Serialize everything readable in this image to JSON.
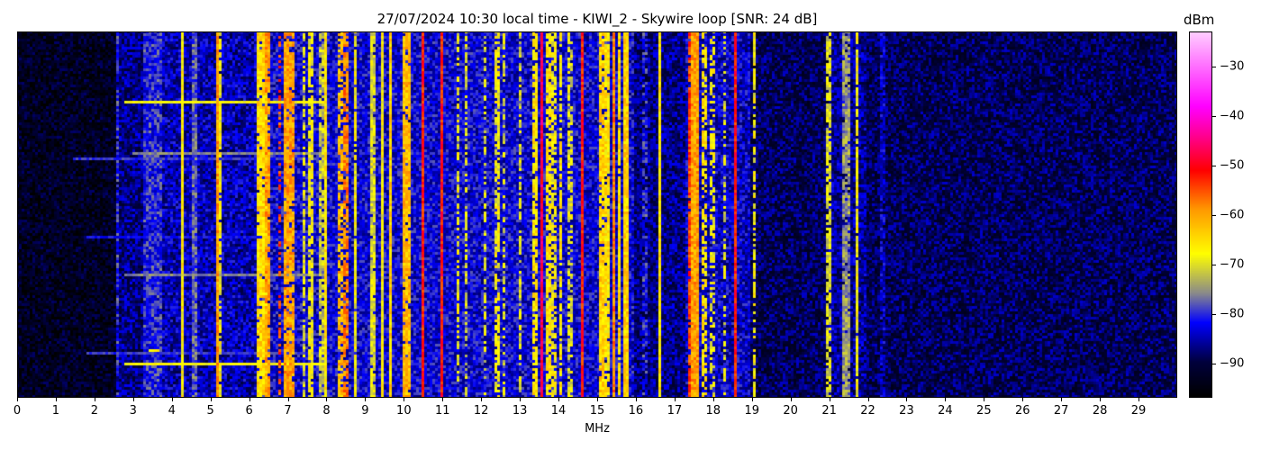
{
  "chart_data": {
    "type": "heatmap",
    "title": "27/07/2024 10:30 local time - KIWI_2 - Skywire loop [SNR: 24 dB]",
    "xlabel": "MHz",
    "ylabel": "",
    "xlim": [
      0,
      30
    ],
    "x_ticks": [
      "0",
      "1",
      "2",
      "3",
      "4",
      "5",
      "6",
      "7",
      "8",
      "9",
      "10",
      "11",
      "12",
      "13",
      "14",
      "15",
      "16",
      "17",
      "18",
      "19",
      "20",
      "21",
      "22",
      "23",
      "24",
      "25",
      "26",
      "27",
      "28",
      "29"
    ],
    "colorbar": {
      "label": "dBm",
      "range": [
        -97,
        -23
      ],
      "ticks": [
        "−30",
        "−40",
        "−50",
        "−60",
        "−70",
        "−80",
        "−90"
      ],
      "tick_values": [
        -30,
        -40,
        -50,
        -60,
        -70,
        -80,
        -90
      ],
      "colormap": [
        {
          "dBm": -97,
          "color": "#000000"
        },
        {
          "dBm": -90,
          "color": "#00003c"
        },
        {
          "dBm": -82,
          "color": "#0000ff"
        },
        {
          "dBm": -76,
          "color": "#8a8a8a"
        },
        {
          "dBm": -68,
          "color": "#ffff00"
        },
        {
          "dBm": -59,
          "color": "#ff9900"
        },
        {
          "dBm": -51,
          "color": "#ff0000"
        },
        {
          "dBm": -44,
          "color": "#ff0090"
        },
        {
          "dBm": -38,
          "color": "#ff00ff"
        },
        {
          "dBm": -23,
          "color": "#ffccff"
        }
      ]
    },
    "grid": false,
    "noise_floor_dBm": [
      {
        "from": 0,
        "to": 2.6,
        "level": -93
      },
      {
        "from": 2.6,
        "to": 3.3,
        "level": -87
      },
      {
        "from": 3.3,
        "to": 3.8,
        "level": -81
      },
      {
        "from": 3.8,
        "to": 6.2,
        "level": -85
      },
      {
        "from": 6.2,
        "to": 16.0,
        "level": -83
      },
      {
        "from": 16.0,
        "to": 17.3,
        "level": -87
      },
      {
        "from": 17.3,
        "to": 19.0,
        "level": -84
      },
      {
        "from": 19.0,
        "to": 21.0,
        "level": -89
      },
      {
        "from": 21.0,
        "to": 22.0,
        "level": -86
      },
      {
        "from": 22.0,
        "to": 30.0,
        "level": -89
      }
    ],
    "signals": [
      {
        "mhz": 2.6,
        "width": 0.03,
        "level": -80,
        "duty": 0.9
      },
      {
        "mhz": 4.28,
        "width": 0.03,
        "level": -67,
        "duty": 1.0
      },
      {
        "mhz": 4.6,
        "width": 0.03,
        "level": -78,
        "duty": 1.0
      },
      {
        "mhz": 5.2,
        "width": 0.05,
        "level": -60,
        "duty": 1.0
      },
      {
        "mhz": 5.26,
        "width": 0.03,
        "level": -68,
        "duty": 0.8
      },
      {
        "mhz": 6.35,
        "width": 0.15,
        "level": -65,
        "duty": 0.9
      },
      {
        "mhz": 6.5,
        "width": 0.05,
        "level": -60,
        "duty": 0.8
      },
      {
        "mhz": 6.8,
        "width": 0.04,
        "level": -55,
        "duty": 0.4
      },
      {
        "mhz": 7.05,
        "width": 0.15,
        "level": -60,
        "duty": 0.9
      },
      {
        "mhz": 7.45,
        "width": 0.03,
        "level": -70,
        "duty": 0.7
      },
      {
        "mhz": 7.6,
        "width": 0.03,
        "level": -68,
        "duty": 0.8
      },
      {
        "mhz": 7.9,
        "width": 0.05,
        "level": -72,
        "duty": 0.8
      },
      {
        "mhz": 8.0,
        "width": 0.03,
        "level": -66,
        "duty": 1.0
      },
      {
        "mhz": 8.35,
        "width": 0.05,
        "level": -62,
        "duty": 0.7
      },
      {
        "mhz": 8.5,
        "width": 0.08,
        "level": -58,
        "duty": 0.8
      },
      {
        "mhz": 8.75,
        "width": 0.04,
        "level": -68,
        "duty": 0.9
      },
      {
        "mhz": 9.2,
        "width": 0.03,
        "level": -70,
        "duty": 0.9
      },
      {
        "mhz": 9.47,
        "width": 0.03,
        "level": -68,
        "duty": 1.0
      },
      {
        "mhz": 9.65,
        "width": 0.04,
        "level": -64,
        "duty": 1.0
      },
      {
        "mhz": 10.1,
        "width": 0.12,
        "level": -62,
        "duty": 0.95
      },
      {
        "mhz": 10.5,
        "width": 0.03,
        "level": -52,
        "duty": 1.0
      },
      {
        "mhz": 11.0,
        "width": 0.04,
        "level": -52,
        "duty": 1.0
      },
      {
        "mhz": 11.4,
        "width": 0.03,
        "level": -68,
        "duty": 0.6
      },
      {
        "mhz": 11.6,
        "width": 0.03,
        "level": -70,
        "duty": 0.6
      },
      {
        "mhz": 12.1,
        "width": 0.03,
        "level": -70,
        "duty": 0.5
      },
      {
        "mhz": 12.4,
        "width": 0.04,
        "level": -68,
        "duty": 0.7
      },
      {
        "mhz": 12.6,
        "width": 0.03,
        "level": -70,
        "duty": 0.5
      },
      {
        "mhz": 13.0,
        "width": 0.03,
        "level": -70,
        "duty": 0.6
      },
      {
        "mhz": 13.4,
        "width": 0.04,
        "level": -66,
        "duty": 0.8
      },
      {
        "mhz": 13.57,
        "width": 0.05,
        "level": -48,
        "duty": 1.0
      },
      {
        "mhz": 13.75,
        "width": 0.04,
        "level": -66,
        "duty": 0.8
      },
      {
        "mhz": 13.9,
        "width": 0.04,
        "level": -68,
        "duty": 0.7
      },
      {
        "mhz": 14.05,
        "width": 0.04,
        "level": -66,
        "duty": 0.7
      },
      {
        "mhz": 14.3,
        "width": 0.03,
        "level": -70,
        "duty": 0.6
      },
      {
        "mhz": 14.6,
        "width": 0.03,
        "level": -52,
        "duty": 1.0
      },
      {
        "mhz": 15.15,
        "width": 0.05,
        "level": -64,
        "duty": 0.9
      },
      {
        "mhz": 15.3,
        "width": 0.05,
        "level": -66,
        "duty": 0.9
      },
      {
        "mhz": 15.45,
        "width": 0.06,
        "level": -58,
        "duty": 1.0
      },
      {
        "mhz": 15.6,
        "width": 0.05,
        "level": -65,
        "duty": 0.9
      },
      {
        "mhz": 15.75,
        "width": 0.04,
        "level": -64,
        "duty": 1.0
      },
      {
        "mhz": 16.25,
        "width": 0.03,
        "level": -80,
        "duty": 0.6
      },
      {
        "mhz": 16.65,
        "width": 0.03,
        "level": -66,
        "duty": 1.0
      },
      {
        "mhz": 17.4,
        "width": 0.03,
        "level": -54,
        "duty": 0.9
      },
      {
        "mhz": 17.55,
        "width": 0.12,
        "level": -60,
        "duty": 1.0
      },
      {
        "mhz": 17.8,
        "width": 0.03,
        "level": -66,
        "duty": 0.6
      },
      {
        "mhz": 18.0,
        "width": 0.03,
        "level": -68,
        "duty": 0.5
      },
      {
        "mhz": 18.3,
        "width": 0.03,
        "level": -70,
        "duty": 0.5
      },
      {
        "mhz": 18.6,
        "width": 0.03,
        "level": -52,
        "duty": 1.0
      },
      {
        "mhz": 19.1,
        "width": 0.03,
        "level": -68,
        "duty": 0.6
      },
      {
        "mhz": 21.0,
        "width": 0.03,
        "level": -70,
        "duty": 0.8
      },
      {
        "mhz": 21.45,
        "width": 0.08,
        "level": -75,
        "duty": 0.9
      },
      {
        "mhz": 21.75,
        "width": 0.03,
        "level": -68,
        "duty": 0.9
      },
      {
        "mhz": 22.4,
        "width": 0.03,
        "level": -84,
        "duty": 0.8
      }
    ],
    "row_events": [
      {
        "row": 26,
        "from": 2.8,
        "to": 7.95,
        "level": -68
      },
      {
        "row": 45,
        "from": 3.0,
        "to": 7.9,
        "level": -76
      },
      {
        "row": 47,
        "from": 1.5,
        "to": 7.8,
        "level": -80
      },
      {
        "row": 76,
        "from": 1.8,
        "to": 8.0,
        "level": -82
      },
      {
        "row": 90,
        "from": 2.8,
        "to": 8.0,
        "level": -76
      },
      {
        "row": 118,
        "from": 3.4,
        "to": 3.7,
        "level": -66
      },
      {
        "row": 119,
        "from": 1.8,
        "to": 8.0,
        "level": -80
      },
      {
        "row": 123,
        "from": 2.8,
        "to": 8.0,
        "level": -68
      }
    ]
  }
}
